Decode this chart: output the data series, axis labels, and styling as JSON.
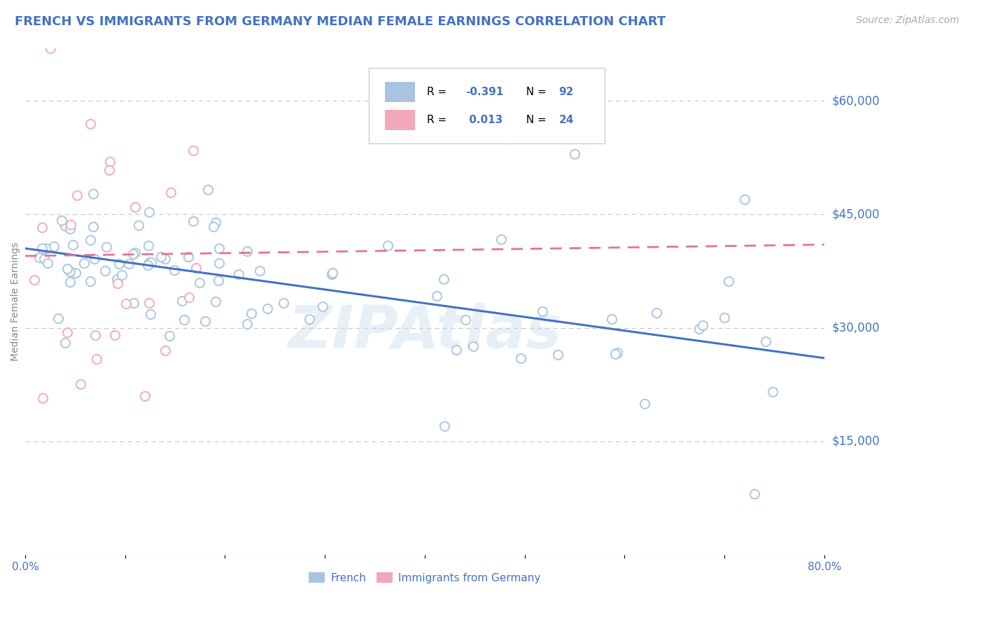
{
  "title": "FRENCH VS IMMIGRANTS FROM GERMANY MEDIAN FEMALE EARNINGS CORRELATION CHART",
  "source_text": "Source: ZipAtlas.com",
  "ylabel": "Median Female Earnings",
  "watermark": "ZIPAtlas",
  "xlim": [
    0.0,
    0.8
  ],
  "ylim": [
    0,
    67000
  ],
  "french_color": "#a8c4e0",
  "german_color": "#f4a7b9",
  "french_line_color": "#4472c4",
  "german_line_color": "#e8738a",
  "french_R": -0.391,
  "french_N": 92,
  "german_R": 0.013,
  "german_N": 24,
  "legend_label_french": "French",
  "legend_label_german": "Immigrants from Germany",
  "background_color": "#ffffff",
  "grid_color": "#c8c8c8",
  "axis_color": "#4472c4",
  "title_color": "#4472c4",
  "title_fontsize": 13,
  "label_fontsize": 10,
  "tick_fontsize": 11,
  "source_fontsize": 10,
  "ytick_vals": [
    15000,
    30000,
    45000,
    60000
  ],
  "ytick_labels": [
    "$15,000",
    "$30,000",
    "$45,000",
    "$60,000"
  ],
  "french_trend_x": [
    0.0,
    0.8
  ],
  "french_trend_y": [
    40500,
    26000
  ],
  "german_trend_x": [
    0.0,
    0.8
  ],
  "german_trend_y": [
    39500,
    41000
  ]
}
